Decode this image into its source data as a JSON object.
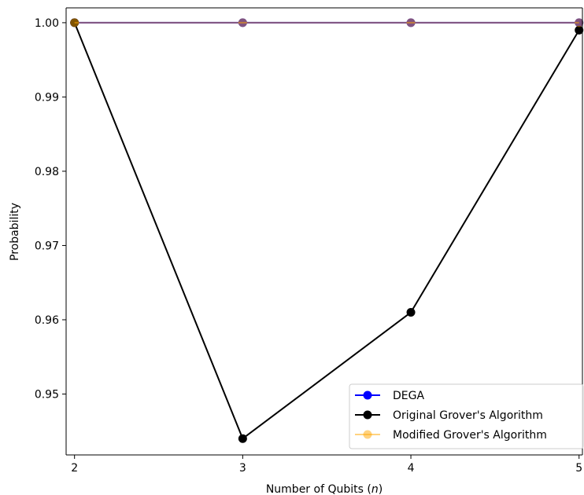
{
  "chart_data": {
    "type": "line",
    "xlabel": "Number of Qubits (",
    "xlabel_var": "n",
    "xlabel_end": ")",
    "ylabel": "Probability",
    "x": [
      2,
      3,
      4,
      5
    ],
    "xlim": [
      1.95,
      5.02
    ],
    "ylim": [
      0.9418,
      1.002
    ],
    "xticks": [
      2,
      3,
      4,
      5
    ],
    "yticks": [
      0.95,
      0.96,
      0.97,
      0.98,
      0.99,
      1.0
    ],
    "ytick_labels": [
      "0.95",
      "0.96",
      "0.97",
      "0.98",
      "0.99",
      "1.00"
    ],
    "grid": false,
    "legend_position": "lower-right",
    "series": [
      {
        "name": "DEGA",
        "values": [
          1.0,
          1.0,
          1.0,
          1.0
        ],
        "color": "#0000ff",
        "marker": "circle"
      },
      {
        "name": "Original Grover's Algorithm",
        "values": [
          1.0,
          0.944,
          0.961,
          0.999
        ],
        "color": "#000000",
        "marker": "circle"
      },
      {
        "name": "Modified Grover's Algorithm",
        "values": [
          1.0,
          1.0,
          1.0,
          1.0
        ],
        "color": "#ffa500",
        "marker": "circle",
        "alpha": 0.5
      }
    ]
  }
}
